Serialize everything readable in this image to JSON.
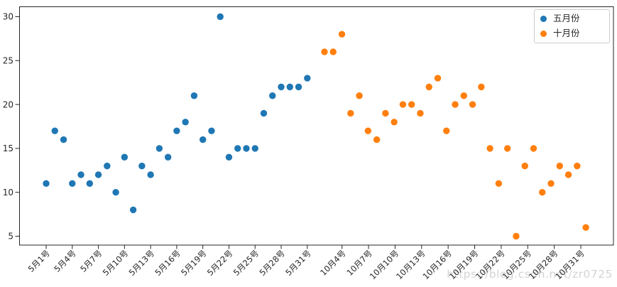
{
  "chart_data": {
    "type": "scatter",
    "title": "",
    "xlabel": "",
    "ylabel": "",
    "grid": false,
    "ylim": [
      3.75,
      31.25
    ],
    "yticks": [
      5,
      10,
      15,
      20,
      25,
      30
    ],
    "xticks": {
      "may": [
        "5月1号",
        "5月4号",
        "5月7号",
        "5月10号",
        "5月13号",
        "5月16号",
        "5月19号",
        "5月22号",
        "5月25号",
        "5月28号",
        "5月31号"
      ],
      "oct": [
        "10月4号",
        "10月7号",
        "10月10号",
        "10月13号",
        "10月16号",
        "10月19号",
        "10月22号",
        "10月25号",
        "10月28号",
        "10月31号"
      ]
    },
    "series": [
      {
        "name": "五月份",
        "color": "#1f77b4",
        "dates": [
          "5月1号",
          "5月2号",
          "5月3号",
          "5月4号",
          "5月5号",
          "5月6号",
          "5月7号",
          "5月8号",
          "5月9号",
          "5月10号",
          "5月11号",
          "5月12号",
          "5月13号",
          "5月14号",
          "5月15号",
          "5月16号",
          "5月17号",
          "5月18号",
          "5月19号",
          "5月20号",
          "5月21号",
          "5月22号",
          "5月23号",
          "5月24号",
          "5月25号",
          "5月26号",
          "5月27号",
          "5月28号",
          "5月29号",
          "5月30号",
          "5月31号"
        ],
        "values": [
          11,
          17,
          16,
          11,
          12,
          11,
          12,
          13,
          10,
          14,
          8,
          13,
          12,
          15,
          14,
          17,
          18,
          21,
          16,
          17,
          30,
          14,
          15,
          15,
          15,
          19,
          21,
          22,
          22,
          22,
          23
        ]
      },
      {
        "name": "十月份",
        "color": "#ff7f0e",
        "dates": [
          "10月1号",
          "10月2号",
          "10月3号",
          "10月4号",
          "10月5号",
          "10月6号",
          "10月7号",
          "10月8号",
          "10月9号",
          "10月10号",
          "10月11号",
          "10月12号",
          "10月13号",
          "10月14号",
          "10月15号",
          "10月16号",
          "10月17号",
          "10月18号",
          "10月19号",
          "10月20号",
          "10月21号",
          "10月22号",
          "10月23号",
          "10月24号",
          "10月25号",
          "10月26号",
          "10月27号",
          "10月28号",
          "10月29号",
          "10月30号",
          "10月31号"
        ],
        "values": [
          26,
          26,
          28,
          19,
          21,
          17,
          16,
          19,
          18,
          20,
          20,
          19,
          22,
          23,
          17,
          20,
          21,
          20,
          22,
          15,
          11,
          15,
          5,
          13,
          15,
          10,
          11,
          13,
          12,
          13,
          6
        ]
      }
    ],
    "legend": {
      "position": "upper right",
      "entries": [
        "五月份",
        "十月份"
      ]
    },
    "watermark": "https://blog.csdn.net/zr0725",
    "colors": {
      "axis": "#262626",
      "tick_label": "#262626",
      "legend_border": "#cccccc",
      "watermark": "#d4d4d4",
      "background": "#ffffff"
    }
  }
}
